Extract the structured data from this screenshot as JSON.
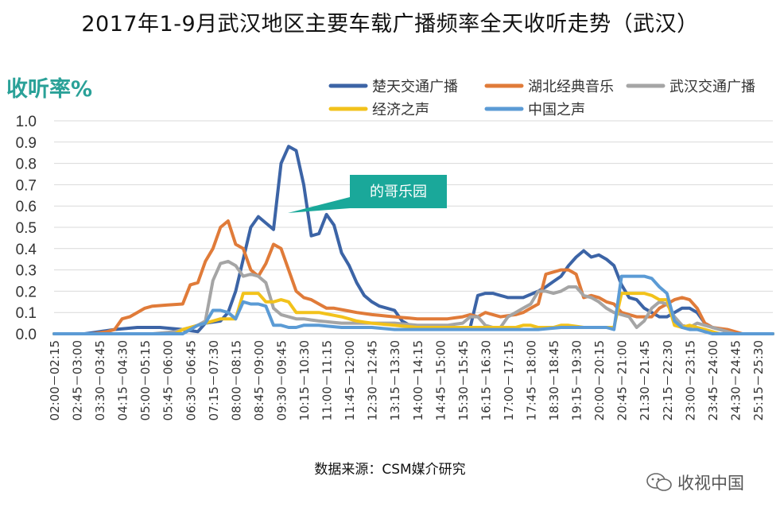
{
  "title": "2017年1-9月武汉地区主要车载广播频率全天收听走势（武汉）",
  "source": "数据来源：CSM媒介研究",
  "watermark": "收视中国",
  "chart_data": {
    "type": "line",
    "title": "2017年1-9月武汉地区主要车载广播频率全天收听走势（武汉）",
    "ylabel": "收听率%",
    "xlabel": "",
    "ylim": [
      0,
      1.0
    ],
    "yticks": [
      "0.0",
      "0.1",
      "0.2",
      "0.3",
      "0.4",
      "0.5",
      "0.6",
      "0.7",
      "0.8",
      "0.9",
      "1.0"
    ],
    "xtick_labels": [
      "02:00－02:15",
      "02:45－03:00",
      "03:30－03:45",
      "04:15－04:30",
      "05:00－05:15",
      "05:45－06:00",
      "06:30－06:45",
      "07:15－07:30",
      "08:00－08:15",
      "08:45－09:00",
      "09:30－09:45",
      "10:15－10:30",
      "11:00－11:15",
      "11:45－12:00",
      "12:30－12:45",
      "13:15－13:30",
      "14:00－14:15",
      "14:45－15:00",
      "15:30－15:45",
      "16:15－16:30",
      "17:00－17:15",
      "17:45－18:00",
      "18:30－18:45",
      "19:15－19:30",
      "20:00－20:15",
      "20:45－21:00",
      "21:30－21:45",
      "22:15－22:30",
      "23:00－23:15",
      "23:45－24:00",
      "24:30－24:45",
      "25:15－25:30"
    ],
    "slot_count": 96,
    "annotation": "的哥乐园",
    "legend_position": "top-right",
    "series": [
      {
        "name": "楚天交通广播",
        "color": "#3c64a6",
        "points": [
          [
            0,
            0
          ],
          [
            4,
            0
          ],
          [
            6,
            0.01
          ],
          [
            8,
            0.02
          ],
          [
            11,
            0.03
          ],
          [
            14,
            0.03
          ],
          [
            17,
            0.02
          ],
          [
            19,
            0.01
          ],
          [
            20,
            0.05
          ],
          [
            22,
            0.06
          ],
          [
            23,
            0.1
          ],
          [
            24,
            0.2
          ],
          [
            25,
            0.35
          ],
          [
            26,
            0.5
          ],
          [
            27,
            0.55
          ],
          [
            28,
            0.52
          ],
          [
            29,
            0.49
          ],
          [
            30,
            0.8
          ],
          [
            31,
            0.88
          ],
          [
            32,
            0.86
          ],
          [
            33,
            0.7
          ],
          [
            34,
            0.46
          ],
          [
            35,
            0.47
          ],
          [
            36,
            0.56
          ],
          [
            37,
            0.51
          ],
          [
            38,
            0.38
          ],
          [
            39,
            0.32
          ],
          [
            40,
            0.24
          ],
          [
            41,
            0.18
          ],
          [
            42,
            0.15
          ],
          [
            43,
            0.13
          ],
          [
            44,
            0.12
          ],
          [
            45,
            0.11
          ],
          [
            46,
            0.06
          ],
          [
            47,
            0.04
          ],
          [
            49,
            0.03
          ],
          [
            52,
            0.03
          ],
          [
            55,
            0.03
          ],
          [
            56,
            0.18
          ],
          [
            57,
            0.19
          ],
          [
            58,
            0.19
          ],
          [
            60,
            0.17
          ],
          [
            62,
            0.17
          ],
          [
            64,
            0.2
          ],
          [
            65,
            0.22
          ],
          [
            67,
            0.27
          ],
          [
            68,
            0.32
          ],
          [
            69,
            0.36
          ],
          [
            70,
            0.39
          ],
          [
            71,
            0.36
          ],
          [
            72,
            0.37
          ],
          [
            73,
            0.35
          ],
          [
            74,
            0.32
          ],
          [
            75,
            0.23
          ],
          [
            76,
            0.17
          ],
          [
            77,
            0.16
          ],
          [
            78,
            0.12
          ],
          [
            79,
            0.1
          ],
          [
            80,
            0.08
          ],
          [
            81,
            0.08
          ],
          [
            82,
            0.1
          ],
          [
            83,
            0.12
          ],
          [
            84,
            0.12
          ],
          [
            85,
            0.1
          ],
          [
            86,
            0.05
          ],
          [
            87,
            0.03
          ],
          [
            88,
            0.02
          ],
          [
            89,
            0.01
          ],
          [
            90,
            0
          ],
          [
            95,
            0
          ]
        ]
      },
      {
        "name": "湖北经典音乐",
        "color": "#e07b39",
        "points": [
          [
            0,
            0
          ],
          [
            5,
            0
          ],
          [
            7,
            0.01
          ],
          [
            8,
            0.02
          ],
          [
            9,
            0.07
          ],
          [
            10,
            0.08
          ],
          [
            11,
            0.1
          ],
          [
            12,
            0.12
          ],
          [
            13,
            0.13
          ],
          [
            17,
            0.14
          ],
          [
            18,
            0.23
          ],
          [
            19,
            0.24
          ],
          [
            20,
            0.34
          ],
          [
            21,
            0.4
          ],
          [
            22,
            0.5
          ],
          [
            23,
            0.53
          ],
          [
            24,
            0.42
          ],
          [
            25,
            0.4
          ],
          [
            26,
            0.3
          ],
          [
            27,
            0.27
          ],
          [
            28,
            0.33
          ],
          [
            29,
            0.42
          ],
          [
            30,
            0.4
          ],
          [
            31,
            0.3
          ],
          [
            32,
            0.2
          ],
          [
            33,
            0.17
          ],
          [
            34,
            0.16
          ],
          [
            35,
            0.14
          ],
          [
            36,
            0.12
          ],
          [
            37,
            0.12
          ],
          [
            40,
            0.1
          ],
          [
            42,
            0.09
          ],
          [
            45,
            0.08
          ],
          [
            48,
            0.07
          ],
          [
            52,
            0.07
          ],
          [
            54,
            0.08
          ],
          [
            55,
            0.09
          ],
          [
            56,
            0.08
          ],
          [
            57,
            0.1
          ],
          [
            58,
            0.09
          ],
          [
            59,
            0.08
          ],
          [
            61,
            0.09
          ],
          [
            62,
            0.1
          ],
          [
            63,
            0.12
          ],
          [
            64,
            0.14
          ],
          [
            65,
            0.28
          ],
          [
            66,
            0.29
          ],
          [
            67,
            0.3
          ],
          [
            68,
            0.3
          ],
          [
            69,
            0.28
          ],
          [
            70,
            0.17
          ],
          [
            71,
            0.18
          ],
          [
            72,
            0.17
          ],
          [
            73,
            0.15
          ],
          [
            74,
            0.14
          ],
          [
            75,
            0.1
          ],
          [
            77,
            0.08
          ],
          [
            79,
            0.08
          ],
          [
            80,
            0.12
          ],
          [
            81,
            0.14
          ],
          [
            82,
            0.16
          ],
          [
            83,
            0.17
          ],
          [
            84,
            0.16
          ],
          [
            85,
            0.12
          ],
          [
            86,
            0.05
          ],
          [
            87,
            0.03
          ],
          [
            89,
            0.02
          ],
          [
            90,
            0.01
          ],
          [
            91,
            0
          ],
          [
            95,
            0
          ]
        ]
      },
      {
        "name": "武汉交通广播",
        "color": "#a5a5a5",
        "points": [
          [
            0,
            0
          ],
          [
            13,
            0
          ],
          [
            16,
            0.01
          ],
          [
            17,
            0.02
          ],
          [
            18,
            0.03
          ],
          [
            19,
            0.04
          ],
          [
            20,
            0.06
          ],
          [
            21,
            0.25
          ],
          [
            22,
            0.33
          ],
          [
            23,
            0.34
          ],
          [
            24,
            0.32
          ],
          [
            25,
            0.27
          ],
          [
            26,
            0.28
          ],
          [
            27,
            0.27
          ],
          [
            28,
            0.24
          ],
          [
            29,
            0.12
          ],
          [
            30,
            0.09
          ],
          [
            31,
            0.08
          ],
          [
            32,
            0.07
          ],
          [
            33,
            0.07
          ],
          [
            35,
            0.06
          ],
          [
            38,
            0.05
          ],
          [
            40,
            0.05
          ],
          [
            42,
            0.05
          ],
          [
            45,
            0.05
          ],
          [
            48,
            0.04
          ],
          [
            52,
            0.04
          ],
          [
            54,
            0.05
          ],
          [
            55,
            0.08
          ],
          [
            56,
            0.08
          ],
          [
            57,
            0.04
          ],
          [
            58,
            0.03
          ],
          [
            59,
            0.03
          ],
          [
            60,
            0.08
          ],
          [
            61,
            0.1
          ],
          [
            62,
            0.12
          ],
          [
            63,
            0.14
          ],
          [
            64,
            0.2
          ],
          [
            65,
            0.2
          ],
          [
            66,
            0.19
          ],
          [
            67,
            0.2
          ],
          [
            68,
            0.22
          ],
          [
            69,
            0.22
          ],
          [
            70,
            0.18
          ],
          [
            71,
            0.17
          ],
          [
            72,
            0.15
          ],
          [
            73,
            0.12
          ],
          [
            74,
            0.1
          ],
          [
            75,
            0.09
          ],
          [
            76,
            0.08
          ],
          [
            77,
            0.03
          ],
          [
            78,
            0.06
          ],
          [
            79,
            0.12
          ],
          [
            80,
            0.15
          ],
          [
            81,
            0.14
          ],
          [
            82,
            0.08
          ],
          [
            83,
            0.04
          ],
          [
            84,
            0.03
          ],
          [
            85,
            0.05
          ],
          [
            86,
            0.04
          ],
          [
            87,
            0.03
          ],
          [
            88,
            0.02
          ],
          [
            89,
            0.01
          ],
          [
            90,
            0
          ],
          [
            95,
            0
          ]
        ]
      },
      {
        "name": "经济之声",
        "color": "#f2c21b",
        "points": [
          [
            0,
            0
          ],
          [
            16,
            0
          ],
          [
            17,
            0.02
          ],
          [
            18,
            0.03
          ],
          [
            19,
            0.04
          ],
          [
            20,
            0.05
          ],
          [
            21,
            0.06
          ],
          [
            22,
            0.07
          ],
          [
            23,
            0.07
          ],
          [
            24,
            0.07
          ],
          [
            25,
            0.19
          ],
          [
            26,
            0.19
          ],
          [
            27,
            0.19
          ],
          [
            28,
            0.15
          ],
          [
            29,
            0.15
          ],
          [
            30,
            0.16
          ],
          [
            31,
            0.15
          ],
          [
            32,
            0.1
          ],
          [
            33,
            0.1
          ],
          [
            35,
            0.1
          ],
          [
            38,
            0.08
          ],
          [
            40,
            0.06
          ],
          [
            42,
            0.05
          ],
          [
            45,
            0.04
          ],
          [
            48,
            0.03
          ],
          [
            52,
            0.03
          ],
          [
            55,
            0.03
          ],
          [
            58,
            0.03
          ],
          [
            61,
            0.03
          ],
          [
            62,
            0.04
          ],
          [
            63,
            0.04
          ],
          [
            64,
            0.03
          ],
          [
            66,
            0.03
          ],
          [
            67,
            0.04
          ],
          [
            68,
            0.04
          ],
          [
            70,
            0.03
          ],
          [
            73,
            0.03
          ],
          [
            74,
            0.03
          ],
          [
            75,
            0.19
          ],
          [
            76,
            0.19
          ],
          [
            77,
            0.19
          ],
          [
            78,
            0.19
          ],
          [
            79,
            0.18
          ],
          [
            80,
            0.16
          ],
          [
            81,
            0.16
          ],
          [
            82,
            0.04
          ],
          [
            83,
            0.03
          ],
          [
            84,
            0.04
          ],
          [
            85,
            0.03
          ],
          [
            86,
            0.02
          ],
          [
            87,
            0.01
          ],
          [
            88,
            0
          ],
          [
            95,
            0
          ]
        ]
      },
      {
        "name": "中国之声",
        "color": "#5b9bd5",
        "points": [
          [
            0,
            0
          ],
          [
            17,
            0
          ],
          [
            18,
            0.02
          ],
          [
            19,
            0.04
          ],
          [
            20,
            0.05
          ],
          [
            21,
            0.11
          ],
          [
            22,
            0.11
          ],
          [
            23,
            0.1
          ],
          [
            24,
            0.07
          ],
          [
            25,
            0.15
          ],
          [
            26,
            0.14
          ],
          [
            27,
            0.14
          ],
          [
            28,
            0.13
          ],
          [
            29,
            0.04
          ],
          [
            30,
            0.04
          ],
          [
            31,
            0.03
          ],
          [
            32,
            0.03
          ],
          [
            33,
            0.04
          ],
          [
            35,
            0.04
          ],
          [
            38,
            0.03
          ],
          [
            40,
            0.03
          ],
          [
            42,
            0.03
          ],
          [
            45,
            0.02
          ],
          [
            48,
            0.02
          ],
          [
            52,
            0.02
          ],
          [
            55,
            0.02
          ],
          [
            58,
            0.02
          ],
          [
            61,
            0.02
          ],
          [
            64,
            0.02
          ],
          [
            67,
            0.03
          ],
          [
            68,
            0.03
          ],
          [
            70,
            0.03
          ],
          [
            73,
            0.03
          ],
          [
            74,
            0.02
          ],
          [
            75,
            0.27
          ],
          [
            76,
            0.27
          ],
          [
            77,
            0.27
          ],
          [
            78,
            0.27
          ],
          [
            79,
            0.26
          ],
          [
            80,
            0.22
          ],
          [
            81,
            0.19
          ],
          [
            82,
            0.06
          ],
          [
            83,
            0.03
          ],
          [
            84,
            0.02
          ],
          [
            85,
            0.02
          ],
          [
            86,
            0.01
          ],
          [
            87,
            0
          ],
          [
            95,
            0
          ]
        ]
      }
    ]
  }
}
